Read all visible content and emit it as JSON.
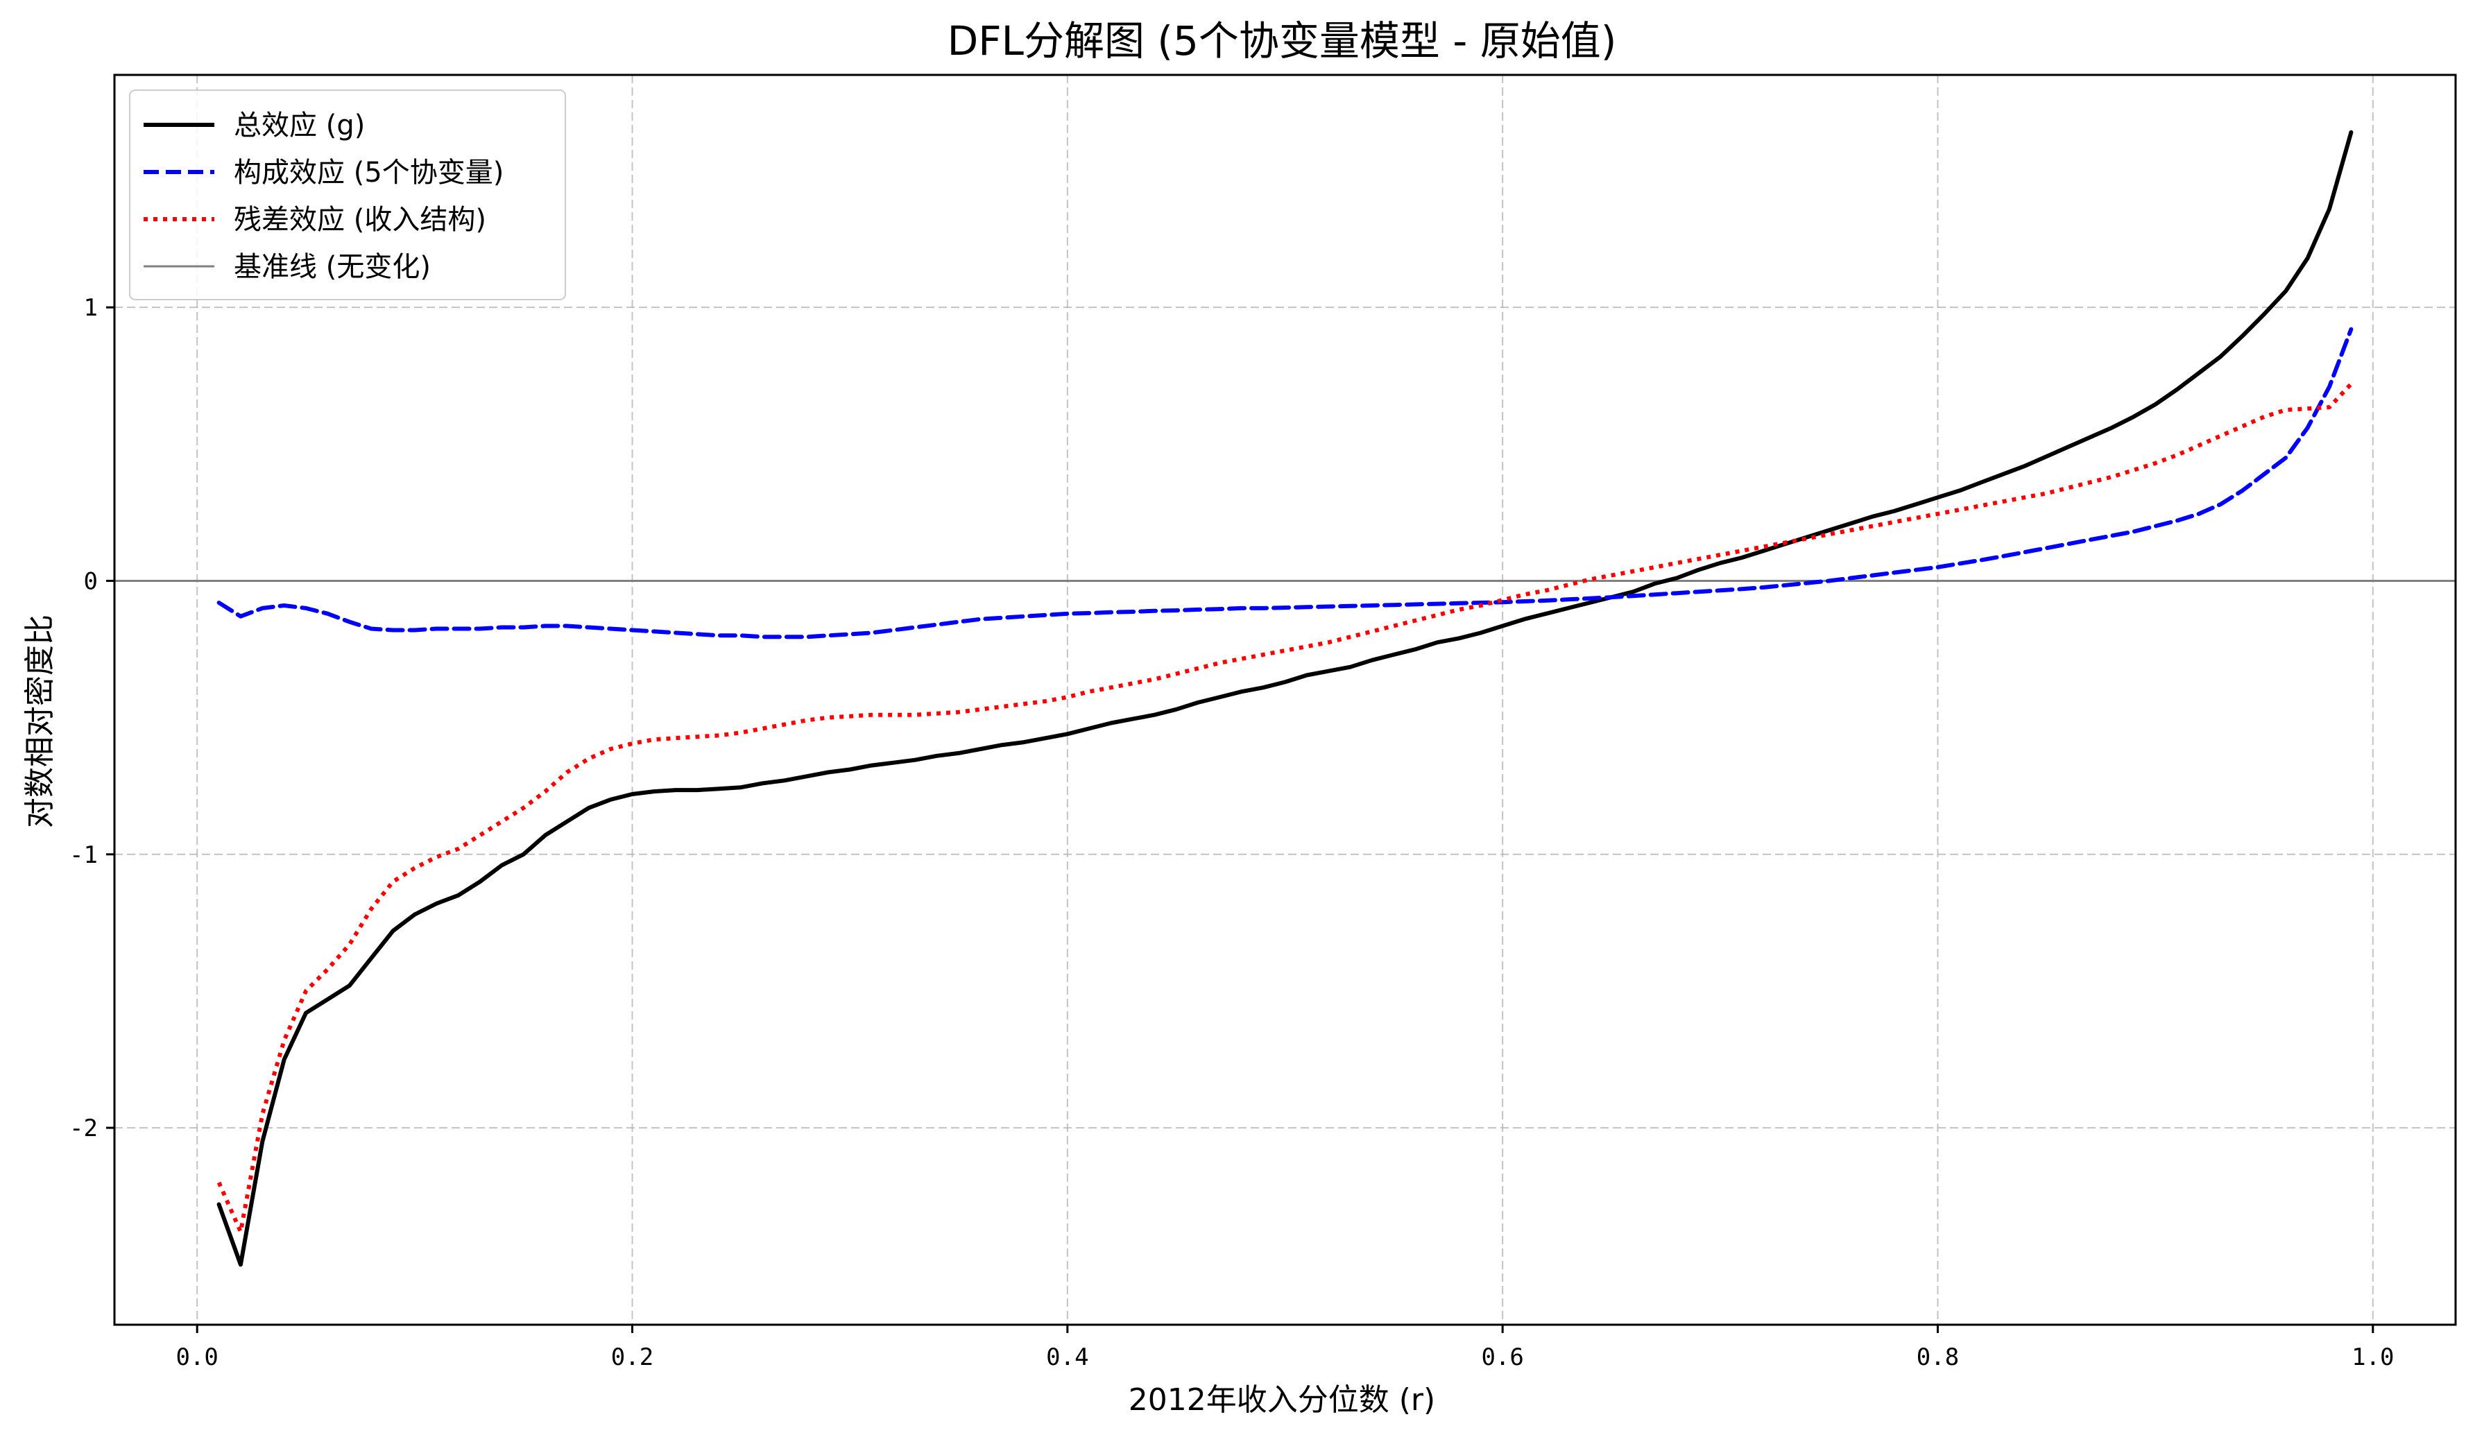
{
  "chart_data": {
    "type": "line",
    "title": "DFL分解图 (5个协变量模型 - 原始值)",
    "xlabel": "2012年收入分位数 (r)",
    "ylabel": "对数相对密度比",
    "xlim": [
      -0.038,
      1.038
    ],
    "ylim": [
      -2.72,
      1.85
    ],
    "x_ticks": [
      0.0,
      0.2,
      0.4,
      0.6,
      0.8,
      1.0
    ],
    "x_tick_labels": [
      "0.0",
      "0.2",
      "0.4",
      "0.6",
      "0.8",
      "1.0"
    ],
    "y_ticks": [
      1,
      0,
      -1,
      -2
    ],
    "y_tick_labels": [
      "1",
      "0",
      "-1",
      "-2"
    ],
    "grid": true,
    "legend_position": "top-left",
    "baseline": {
      "name": "基准线 (无变化)",
      "y": 0,
      "color": "#808080"
    },
    "series": [
      {
        "name": "总效应 (g)",
        "color": "#000000",
        "style": "solid",
        "points": [
          [
            0.01,
            -2.28
          ],
          [
            0.02,
            -2.5
          ],
          [
            0.03,
            -2.05
          ],
          [
            0.04,
            -1.75
          ],
          [
            0.05,
            -1.58
          ],
          [
            0.06,
            -1.53
          ],
          [
            0.07,
            -1.48
          ],
          [
            0.08,
            -1.38
          ],
          [
            0.09,
            -1.28
          ],
          [
            0.1,
            -1.22
          ],
          [
            0.11,
            -1.18
          ],
          [
            0.12,
            -1.15
          ],
          [
            0.13,
            -1.1
          ],
          [
            0.14,
            -1.04
          ],
          [
            0.15,
            -1.0
          ],
          [
            0.16,
            -0.93
          ],
          [
            0.17,
            -0.88
          ],
          [
            0.18,
            -0.83
          ],
          [
            0.19,
            -0.8
          ],
          [
            0.2,
            -0.78
          ],
          [
            0.21,
            -0.77
          ],
          [
            0.22,
            -0.765
          ],
          [
            0.23,
            -0.765
          ],
          [
            0.24,
            -0.76
          ],
          [
            0.25,
            -0.755
          ],
          [
            0.26,
            -0.74
          ],
          [
            0.27,
            -0.73
          ],
          [
            0.28,
            -0.715
          ],
          [
            0.29,
            -0.7
          ],
          [
            0.3,
            -0.69
          ],
          [
            0.31,
            -0.675
          ],
          [
            0.32,
            -0.665
          ],
          [
            0.33,
            -0.655
          ],
          [
            0.34,
            -0.64
          ],
          [
            0.35,
            -0.63
          ],
          [
            0.36,
            -0.615
          ],
          [
            0.37,
            -0.6
          ],
          [
            0.38,
            -0.59
          ],
          [
            0.39,
            -0.575
          ],
          [
            0.4,
            -0.56
          ],
          [
            0.41,
            -0.54
          ],
          [
            0.42,
            -0.52
          ],
          [
            0.43,
            -0.505
          ],
          [
            0.44,
            -0.49
          ],
          [
            0.45,
            -0.47
          ],
          [
            0.46,
            -0.445
          ],
          [
            0.47,
            -0.425
          ],
          [
            0.48,
            -0.405
          ],
          [
            0.49,
            -0.39
          ],
          [
            0.5,
            -0.37
          ],
          [
            0.51,
            -0.345
          ],
          [
            0.52,
            -0.33
          ],
          [
            0.53,
            -0.315
          ],
          [
            0.54,
            -0.29
          ],
          [
            0.55,
            -0.27
          ],
          [
            0.56,
            -0.25
          ],
          [
            0.57,
            -0.225
          ],
          [
            0.58,
            -0.21
          ],
          [
            0.59,
            -0.19
          ],
          [
            0.6,
            -0.165
          ],
          [
            0.61,
            -0.14
          ],
          [
            0.62,
            -0.12
          ],
          [
            0.63,
            -0.1
          ],
          [
            0.64,
            -0.08
          ],
          [
            0.65,
            -0.06
          ],
          [
            0.66,
            -0.04
          ],
          [
            0.67,
            -0.01
          ],
          [
            0.68,
            0.01
          ],
          [
            0.69,
            0.04
          ],
          [
            0.7,
            0.065
          ],
          [
            0.71,
            0.085
          ],
          [
            0.72,
            0.11
          ],
          [
            0.73,
            0.135
          ],
          [
            0.74,
            0.16
          ],
          [
            0.75,
            0.185
          ],
          [
            0.76,
            0.21
          ],
          [
            0.77,
            0.235
          ],
          [
            0.78,
            0.255
          ],
          [
            0.79,
            0.28
          ],
          [
            0.8,
            0.305
          ],
          [
            0.81,
            0.33
          ],
          [
            0.82,
            0.36
          ],
          [
            0.83,
            0.39
          ],
          [
            0.84,
            0.42
          ],
          [
            0.85,
            0.455
          ],
          [
            0.86,
            0.49
          ],
          [
            0.87,
            0.525
          ],
          [
            0.88,
            0.56
          ],
          [
            0.89,
            0.6
          ],
          [
            0.9,
            0.645
          ],
          [
            0.91,
            0.7
          ],
          [
            0.92,
            0.76
          ],
          [
            0.93,
            0.82
          ],
          [
            0.94,
            0.895
          ],
          [
            0.95,
            0.975
          ],
          [
            0.96,
            1.06
          ],
          [
            0.97,
            1.18
          ],
          [
            0.98,
            1.36
          ],
          [
            0.99,
            1.64
          ]
        ]
      },
      {
        "name": "构成效应 (5个协变量)",
        "color": "#0000ff",
        "style": "dashed",
        "points": [
          [
            0.01,
            -0.08
          ],
          [
            0.02,
            -0.13
          ],
          [
            0.03,
            -0.1
          ],
          [
            0.04,
            -0.09
          ],
          [
            0.05,
            -0.1
          ],
          [
            0.06,
            -0.12
          ],
          [
            0.07,
            -0.15
          ],
          [
            0.08,
            -0.175
          ],
          [
            0.09,
            -0.18
          ],
          [
            0.1,
            -0.18
          ],
          [
            0.11,
            -0.175
          ],
          [
            0.12,
            -0.175
          ],
          [
            0.13,
            -0.175
          ],
          [
            0.14,
            -0.17
          ],
          [
            0.15,
            -0.17
          ],
          [
            0.16,
            -0.165
          ],
          [
            0.17,
            -0.165
          ],
          [
            0.18,
            -0.17
          ],
          [
            0.19,
            -0.175
          ],
          [
            0.2,
            -0.18
          ],
          [
            0.21,
            -0.185
          ],
          [
            0.22,
            -0.19
          ],
          [
            0.23,
            -0.195
          ],
          [
            0.24,
            -0.2
          ],
          [
            0.25,
            -0.2
          ],
          [
            0.26,
            -0.205
          ],
          [
            0.27,
            -0.205
          ],
          [
            0.28,
            -0.205
          ],
          [
            0.29,
            -0.2
          ],
          [
            0.3,
            -0.195
          ],
          [
            0.31,
            -0.19
          ],
          [
            0.32,
            -0.18
          ],
          [
            0.33,
            -0.17
          ],
          [
            0.34,
            -0.16
          ],
          [
            0.35,
            -0.15
          ],
          [
            0.36,
            -0.14
          ],
          [
            0.37,
            -0.135
          ],
          [
            0.38,
            -0.13
          ],
          [
            0.39,
            -0.125
          ],
          [
            0.4,
            -0.12
          ],
          [
            0.41,
            -0.118
          ],
          [
            0.42,
            -0.115
          ],
          [
            0.43,
            -0.113
          ],
          [
            0.44,
            -0.11
          ],
          [
            0.45,
            -0.108
          ],
          [
            0.46,
            -0.105
          ],
          [
            0.47,
            -0.103
          ],
          [
            0.48,
            -0.1
          ],
          [
            0.49,
            -0.1
          ],
          [
            0.5,
            -0.098
          ],
          [
            0.51,
            -0.096
          ],
          [
            0.52,
            -0.094
          ],
          [
            0.53,
            -0.092
          ],
          [
            0.54,
            -0.09
          ],
          [
            0.55,
            -0.088
          ],
          [
            0.56,
            -0.086
          ],
          [
            0.57,
            -0.084
          ],
          [
            0.58,
            -0.082
          ],
          [
            0.59,
            -0.08
          ],
          [
            0.6,
            -0.078
          ],
          [
            0.61,
            -0.075
          ],
          [
            0.62,
            -0.072
          ],
          [
            0.63,
            -0.068
          ],
          [
            0.64,
            -0.064
          ],
          [
            0.65,
            -0.06
          ],
          [
            0.66,
            -0.055
          ],
          [
            0.67,
            -0.05
          ],
          [
            0.68,
            -0.045
          ],
          [
            0.69,
            -0.04
          ],
          [
            0.7,
            -0.035
          ],
          [
            0.71,
            -0.03
          ],
          [
            0.72,
            -0.024
          ],
          [
            0.73,
            -0.016
          ],
          [
            0.74,
            -0.008
          ],
          [
            0.75,
            0.0
          ],
          [
            0.76,
            0.01
          ],
          [
            0.77,
            0.02
          ],
          [
            0.78,
            0.03
          ],
          [
            0.79,
            0.04
          ],
          [
            0.8,
            0.05
          ],
          [
            0.81,
            0.063
          ],
          [
            0.82,
            0.076
          ],
          [
            0.83,
            0.09
          ],
          [
            0.84,
            0.105
          ],
          [
            0.85,
            0.12
          ],
          [
            0.86,
            0.135
          ],
          [
            0.87,
            0.15
          ],
          [
            0.88,
            0.165
          ],
          [
            0.89,
            0.18
          ],
          [
            0.9,
            0.2
          ],
          [
            0.91,
            0.22
          ],
          [
            0.92,
            0.245
          ],
          [
            0.93,
            0.28
          ],
          [
            0.94,
            0.33
          ],
          [
            0.95,
            0.39
          ],
          [
            0.96,
            0.45
          ],
          [
            0.97,
            0.56
          ],
          [
            0.98,
            0.71
          ],
          [
            0.99,
            0.92
          ]
        ]
      },
      {
        "name": "残差效应 (收入结构)",
        "color": "#ff0000",
        "style": "dotted",
        "points": [
          [
            0.01,
            -2.2
          ],
          [
            0.02,
            -2.38
          ],
          [
            0.03,
            -1.95
          ],
          [
            0.04,
            -1.68
          ],
          [
            0.05,
            -1.5
          ],
          [
            0.06,
            -1.42
          ],
          [
            0.07,
            -1.33
          ],
          [
            0.08,
            -1.2
          ],
          [
            0.09,
            -1.1
          ],
          [
            0.1,
            -1.05
          ],
          [
            0.11,
            -1.01
          ],
          [
            0.12,
            -0.98
          ],
          [
            0.13,
            -0.93
          ],
          [
            0.14,
            -0.88
          ],
          [
            0.15,
            -0.83
          ],
          [
            0.16,
            -0.77
          ],
          [
            0.17,
            -0.7
          ],
          [
            0.18,
            -0.65
          ],
          [
            0.19,
            -0.615
          ],
          [
            0.2,
            -0.595
          ],
          [
            0.21,
            -0.58
          ],
          [
            0.22,
            -0.575
          ],
          [
            0.23,
            -0.57
          ],
          [
            0.24,
            -0.565
          ],
          [
            0.25,
            -0.555
          ],
          [
            0.26,
            -0.54
          ],
          [
            0.27,
            -0.525
          ],
          [
            0.28,
            -0.51
          ],
          [
            0.29,
            -0.5
          ],
          [
            0.3,
            -0.495
          ],
          [
            0.31,
            -0.49
          ],
          [
            0.32,
            -0.49
          ],
          [
            0.33,
            -0.49
          ],
          [
            0.34,
            -0.485
          ],
          [
            0.35,
            -0.48
          ],
          [
            0.36,
            -0.47
          ],
          [
            0.37,
            -0.46
          ],
          [
            0.38,
            -0.45
          ],
          [
            0.39,
            -0.44
          ],
          [
            0.4,
            -0.425
          ],
          [
            0.41,
            -0.405
          ],
          [
            0.42,
            -0.39
          ],
          [
            0.43,
            -0.375
          ],
          [
            0.44,
            -0.36
          ],
          [
            0.45,
            -0.34
          ],
          [
            0.46,
            -0.32
          ],
          [
            0.47,
            -0.3
          ],
          [
            0.48,
            -0.285
          ],
          [
            0.49,
            -0.27
          ],
          [
            0.5,
            -0.255
          ],
          [
            0.51,
            -0.24
          ],
          [
            0.52,
            -0.225
          ],
          [
            0.53,
            -0.205
          ],
          [
            0.54,
            -0.185
          ],
          [
            0.55,
            -0.165
          ],
          [
            0.56,
            -0.145
          ],
          [
            0.57,
            -0.125
          ],
          [
            0.58,
            -0.105
          ],
          [
            0.59,
            -0.09
          ],
          [
            0.6,
            -0.07
          ],
          [
            0.61,
            -0.05
          ],
          [
            0.62,
            -0.035
          ],
          [
            0.63,
            -0.015
          ],
          [
            0.64,
            0.005
          ],
          [
            0.65,
            0.02
          ],
          [
            0.66,
            0.035
          ],
          [
            0.67,
            0.05
          ],
          [
            0.68,
            0.065
          ],
          [
            0.69,
            0.08
          ],
          [
            0.7,
            0.095
          ],
          [
            0.71,
            0.11
          ],
          [
            0.72,
            0.125
          ],
          [
            0.73,
            0.14
          ],
          [
            0.74,
            0.155
          ],
          [
            0.75,
            0.17
          ],
          [
            0.76,
            0.185
          ],
          [
            0.77,
            0.2
          ],
          [
            0.78,
            0.215
          ],
          [
            0.79,
            0.23
          ],
          [
            0.8,
            0.245
          ],
          [
            0.81,
            0.26
          ],
          [
            0.82,
            0.275
          ],
          [
            0.83,
            0.29
          ],
          [
            0.84,
            0.305
          ],
          [
            0.85,
            0.32
          ],
          [
            0.86,
            0.34
          ],
          [
            0.87,
            0.36
          ],
          [
            0.88,
            0.38
          ],
          [
            0.89,
            0.405
          ],
          [
            0.9,
            0.43
          ],
          [
            0.91,
            0.46
          ],
          [
            0.92,
            0.495
          ],
          [
            0.93,
            0.53
          ],
          [
            0.94,
            0.565
          ],
          [
            0.95,
            0.6
          ],
          [
            0.96,
            0.625
          ],
          [
            0.97,
            0.63
          ],
          [
            0.98,
            0.635
          ],
          [
            0.99,
            0.72
          ]
        ]
      }
    ]
  }
}
